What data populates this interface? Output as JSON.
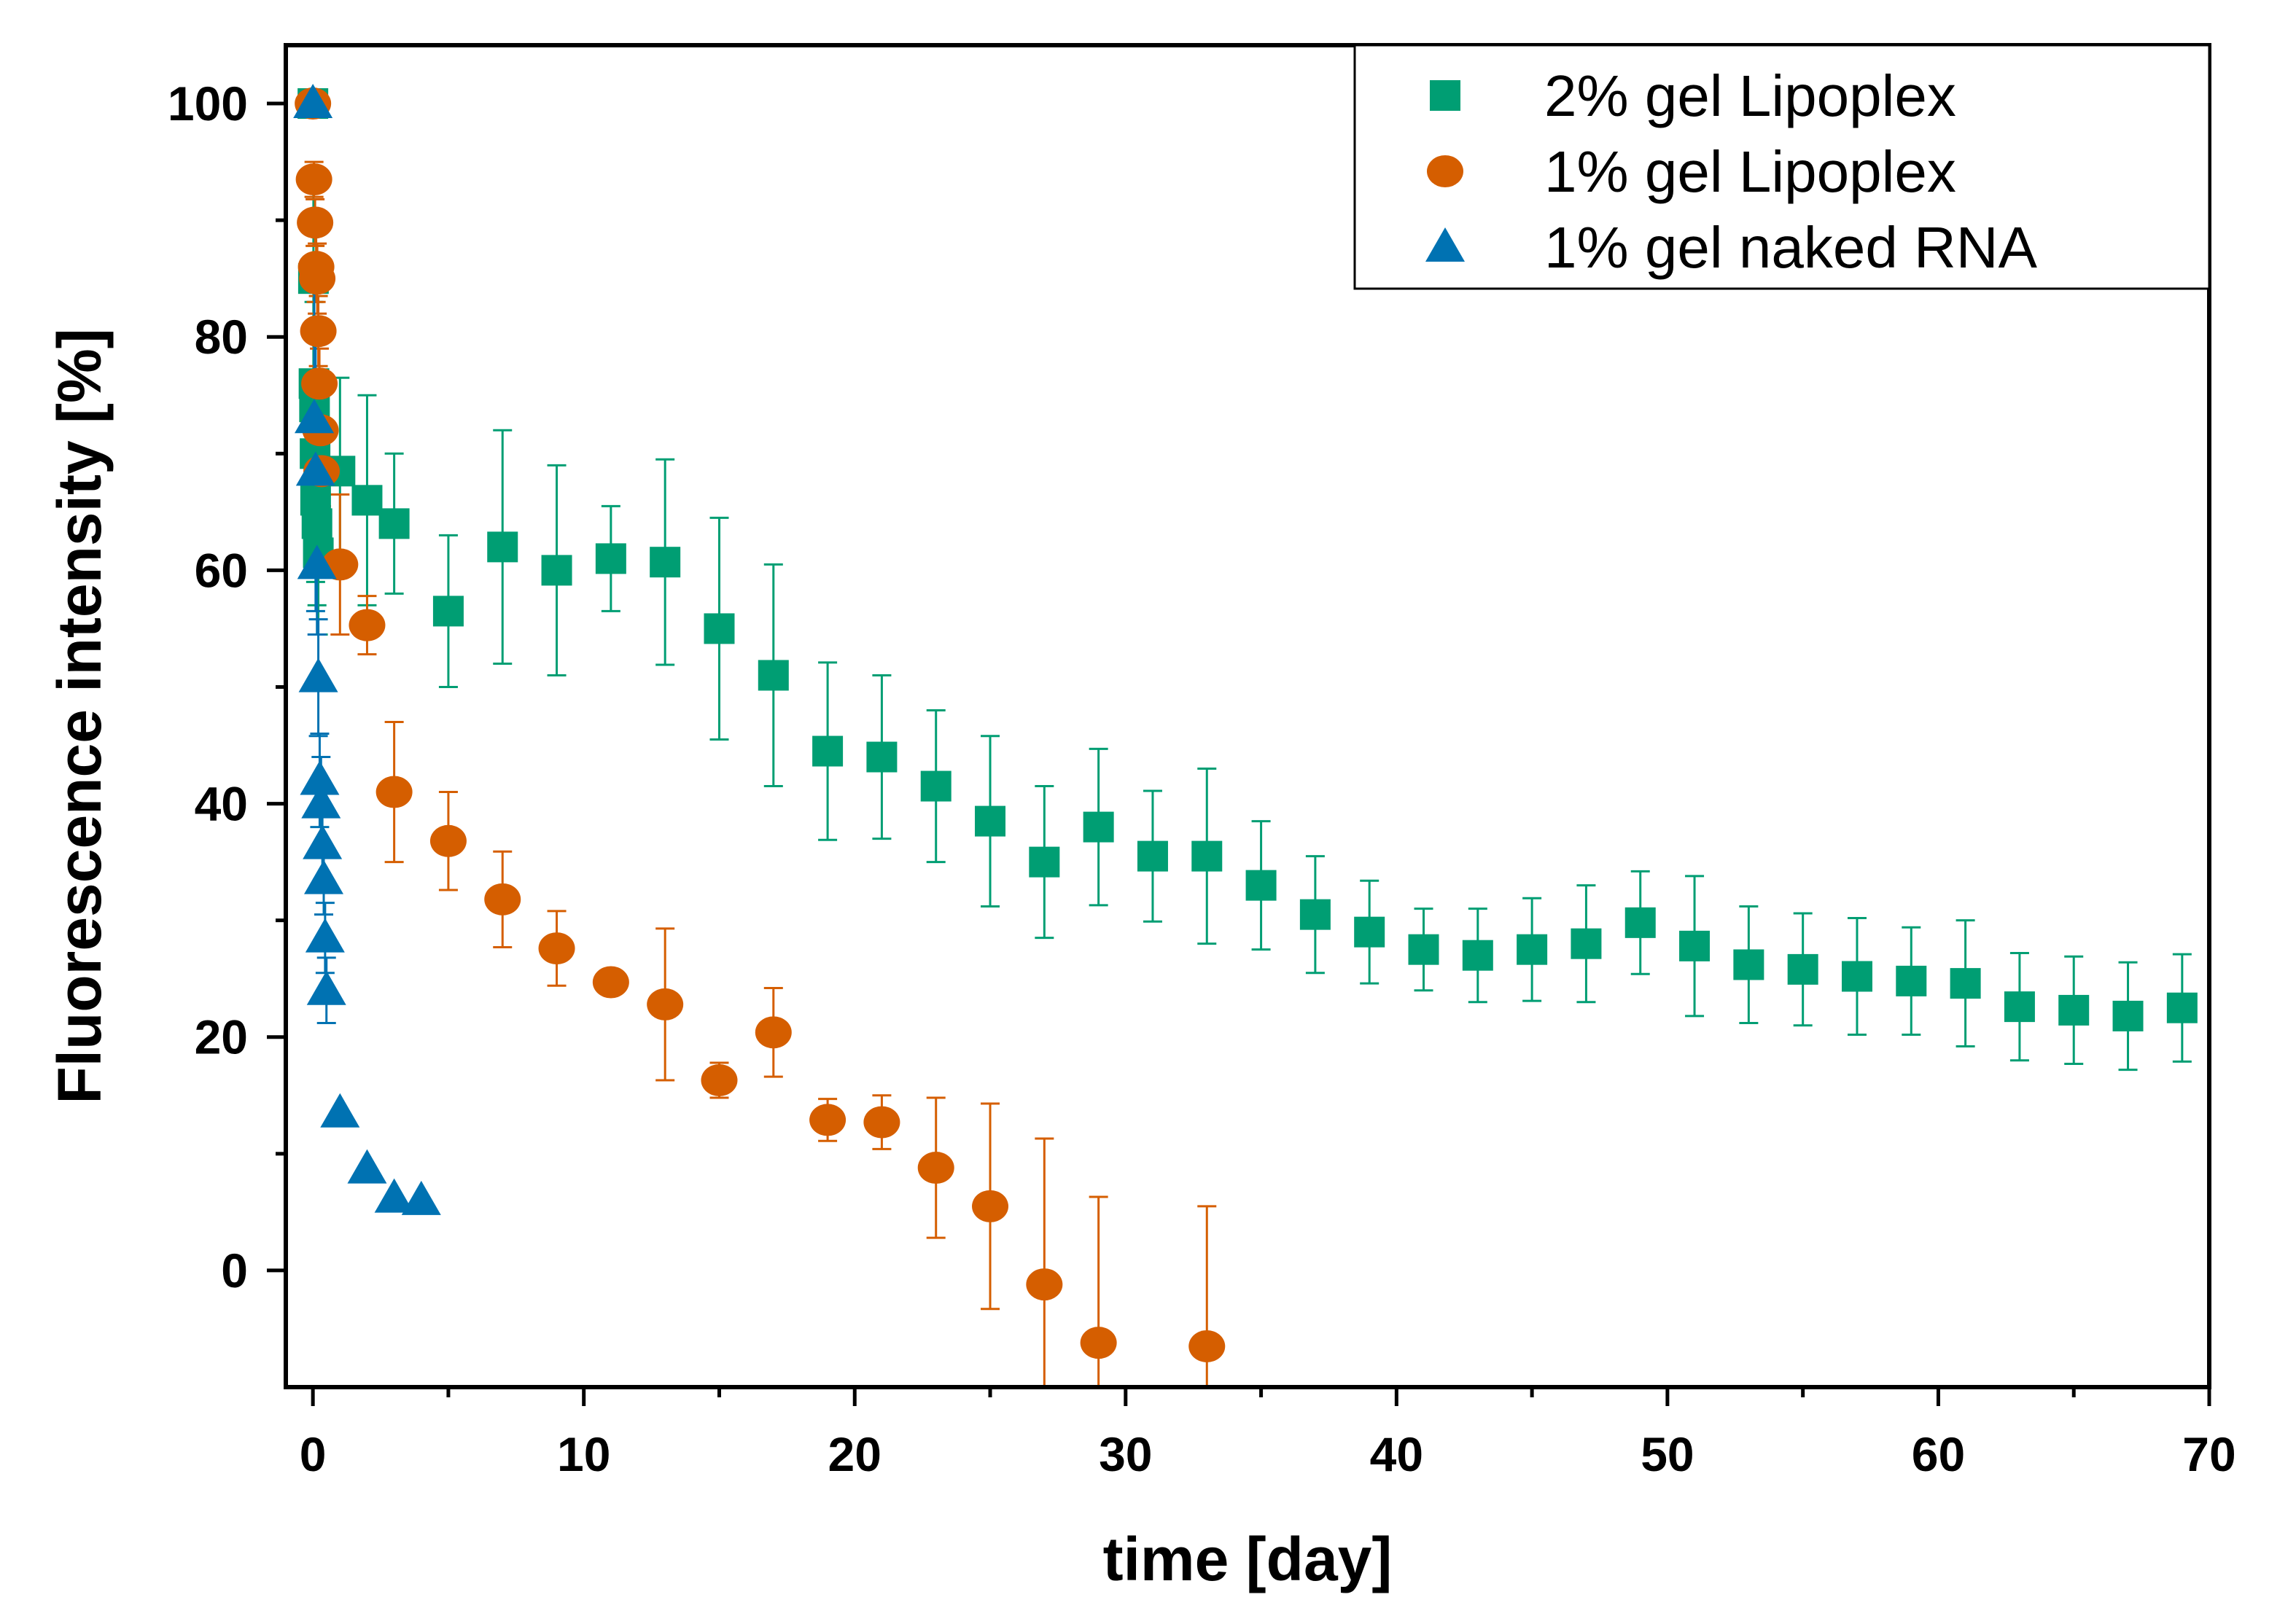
{
  "chart_data": {
    "type": "scatter",
    "title": "",
    "xlabel": "time [day]",
    "ylabel": "Fluorescence intensity [%]",
    "xlim": [
      -1,
      70
    ],
    "ylim": [
      -10,
      105
    ],
    "xticks": [
      "0",
      "10",
      "20",
      "30",
      "40",
      "50",
      "60",
      "70"
    ],
    "yticks": [
      "0",
      "20",
      "40",
      "60",
      "80",
      "100"
    ],
    "legend_position": "top-right",
    "series": [
      {
        "name": "2% gel Lipoplex",
        "marker": "square",
        "color": "#009E73",
        "x": [
          0,
          0.02,
          0.04,
          0.06,
          0.08,
          0.1,
          0.15,
          0.2,
          1,
          2,
          3,
          5,
          7,
          9,
          11,
          13,
          15,
          17,
          19,
          21,
          23,
          25,
          27,
          29,
          31,
          33,
          35,
          37,
          39,
          41,
          43,
          45,
          47,
          49,
          51,
          53,
          55,
          57,
          59,
          61,
          63,
          65,
          67,
          69
        ],
        "y": [
          100,
          85,
          76,
          74,
          70,
          66,
          64,
          61.5,
          68.5,
          66,
          64,
          56.5,
          62,
          60,
          61,
          60.7,
          55,
          51,
          44.5,
          44,
          41.5,
          38.5,
          35,
          38,
          35.5,
          35.5,
          33,
          30.5,
          29,
          27.5,
          27,
          27.5,
          28,
          29.8,
          27.8,
          26.2,
          25.8,
          25.2,
          24.8,
          24.6,
          22.6,
          22.3,
          21.8,
          22.5
        ],
        "err": [
          0,
          8,
          7,
          7,
          7,
          7,
          7,
          7,
          8,
          9,
          6,
          6.5,
          10,
          9,
          4.5,
          8.8,
          9.5,
          9.5,
          7.6,
          7,
          6.5,
          7.3,
          6.5,
          6.7,
          5.6,
          7.5,
          5.5,
          5,
          4.4,
          3.5,
          4,
          4.4,
          5,
          4.4,
          6,
          5,
          4.8,
          5,
          4.6,
          5.4,
          4.6,
          4.6,
          4.6,
          4.6
        ]
      },
      {
        "name": "1% gel Lipoplex",
        "marker": "circle",
        "color": "#D55E00",
        "x": [
          0,
          0.04,
          0.08,
          0.12,
          0.16,
          0.2,
          0.24,
          0.28,
          0.32,
          1,
          2,
          3,
          5,
          7,
          9,
          11,
          13,
          15,
          17,
          19,
          21,
          23,
          25,
          27,
          29,
          33
        ],
        "y": [
          100,
          93.5,
          89.8,
          86,
          85,
          80.5,
          76,
          72,
          68.5,
          60.5,
          55.3,
          41,
          36.8,
          31.8,
          27.6,
          24.7,
          22.8,
          16.3,
          20.4,
          12.9,
          12.7,
          8.8,
          5.5,
          -1.2,
          -6.2,
          -6.5
        ],
        "err": [
          0,
          1.5,
          2,
          3,
          3,
          3,
          3,
          3,
          3,
          6,
          2.5,
          6,
          4.2,
          4.1,
          3.2,
          0,
          6.5,
          1.5,
          3.8,
          1.8,
          2.3,
          6,
          8.8,
          12.5,
          12.5,
          12
        ]
      },
      {
        "name": "1% gel naked RNA",
        "marker": "triangle",
        "color": "#0072B2",
        "x": [
          0,
          0.05,
          0.1,
          0.15,
          0.2,
          0.25,
          0.3,
          0.35,
          0.4,
          0.45,
          0.5,
          1,
          2,
          3,
          4
        ],
        "y": [
          100,
          73,
          68.5,
          60.5,
          50.8,
          42,
          40,
          36.5,
          33.5,
          28.5,
          24,
          13.5,
          8.7,
          6.2,
          6
        ],
        "err": [
          0,
          12,
          12,
          6,
          5,
          4,
          4,
          3,
          3,
          3,
          2.8,
          0,
          0,
          0,
          0
        ]
      }
    ]
  }
}
